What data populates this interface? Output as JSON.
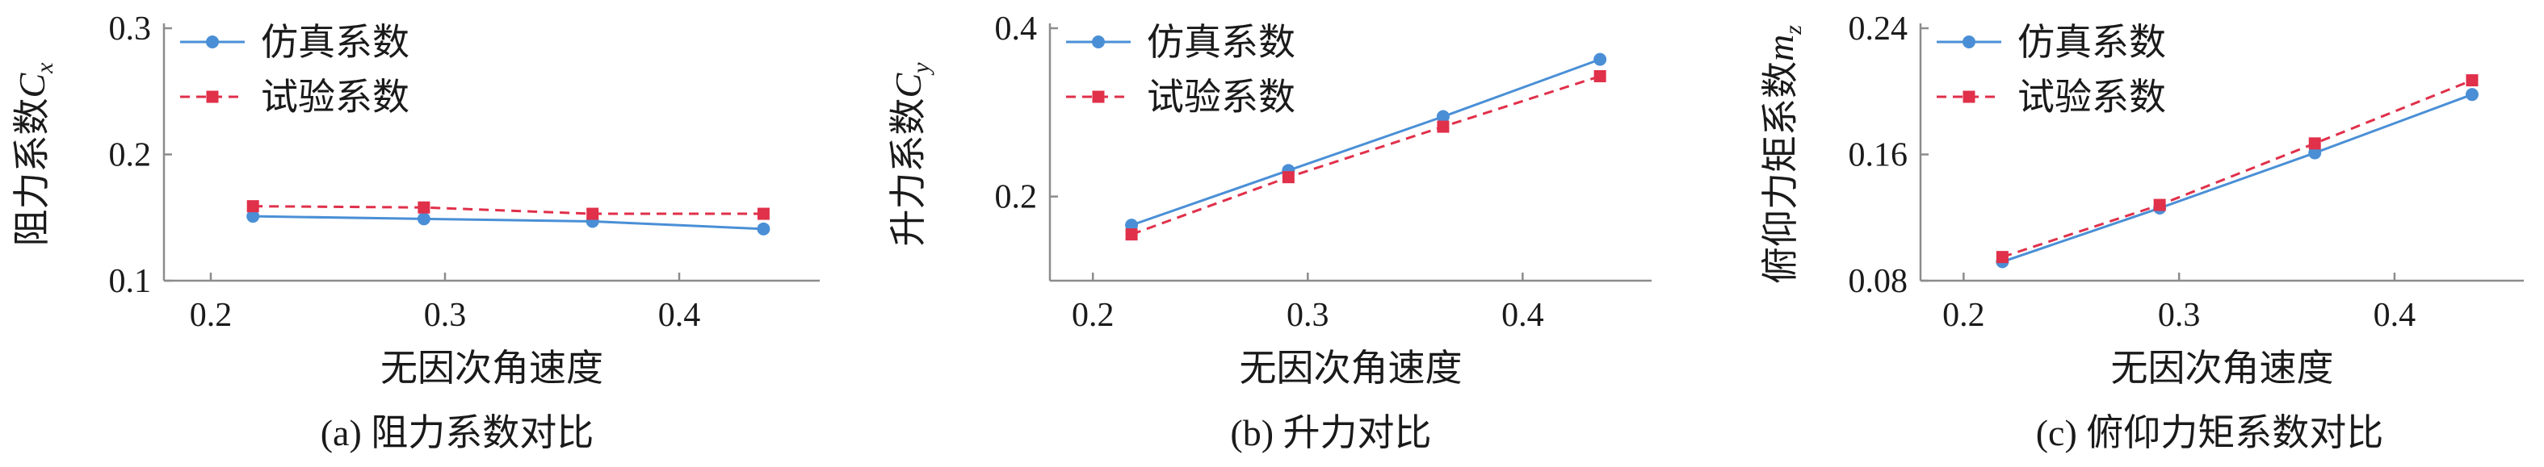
{
  "legend": {
    "sim_label": "仿真系数",
    "test_label": "试验系数"
  },
  "colors": {
    "sim": "#4a8fd6",
    "test": "#e0304a",
    "axis": "#8c8c8c"
  },
  "chart_data": [
    {
      "type": "line",
      "panel_caption": "(a) 阻力系数对比",
      "xlabel": "无因次角速度",
      "ylabel_text": "阻力系数",
      "ylabel_symbol": "C",
      "ylabel_sub": "x",
      "xlim": [
        0.18,
        0.46
      ],
      "ylim": [
        0.1,
        0.3
      ],
      "xticks": [
        0.2,
        0.3,
        0.4
      ],
      "xtick_labels": [
        "0.2",
        "0.3",
        "0.4"
      ],
      "yticks": [
        0.1,
        0.2,
        0.3
      ],
      "ytick_labels": [
        "0.1",
        "0.2",
        "0.3"
      ],
      "legend_position": "top-left",
      "grid": false,
      "x": [
        0.218,
        0.291,
        0.363,
        0.436
      ],
      "series": [
        {
          "name": "仿真系数",
          "values": [
            0.151,
            0.149,
            0.147,
            0.141
          ]
        },
        {
          "name": "试验系数",
          "values": [
            0.159,
            0.158,
            0.153,
            0.153
          ]
        }
      ]
    },
    {
      "type": "line",
      "panel_caption": "(b) 升力对比",
      "xlabel": "无因次角速度",
      "ylabel_text": "升力系数",
      "ylabel_symbol": "C",
      "ylabel_sub": "y",
      "xlim": [
        0.18,
        0.46
      ],
      "ylim": [
        0.1,
        0.4
      ],
      "xticks": [
        0.2,
        0.3,
        0.4
      ],
      "xtick_labels": [
        "0.2",
        "0.3",
        "0.4"
      ],
      "yticks": [
        0.2,
        0.4
      ],
      "ytick_labels": [
        "0.2",
        "0.4"
      ],
      "legend_position": "top-left",
      "grid": false,
      "x": [
        0.218,
        0.291,
        0.363,
        0.436
      ],
      "series": [
        {
          "name": "仿真系数",
          "values": [
            0.166,
            0.231,
            0.295,
            0.363
          ]
        },
        {
          "name": "试验系数",
          "values": [
            0.155,
            0.223,
            0.283,
            0.343
          ]
        }
      ]
    },
    {
      "type": "line",
      "panel_caption": "(c) 俯仰力矩系数对比",
      "xlabel": "无因次角速度",
      "ylabel_text": "俯仰力矩系数",
      "ylabel_symbol": "m",
      "ylabel_sub": "z",
      "xlim": [
        0.18,
        0.46
      ],
      "ylim": [
        0.08,
        0.24
      ],
      "xticks": [
        0.2,
        0.3,
        0.4
      ],
      "xtick_labels": [
        "0.2",
        "0.3",
        "0.4"
      ],
      "yticks": [
        0.08,
        0.16,
        0.24
      ],
      "ytick_labels": [
        "0.08",
        "0.16",
        "0.24"
      ],
      "legend_position": "top-left",
      "grid": false,
      "x": [
        0.218,
        0.291,
        0.363,
        0.436
      ],
      "series": [
        {
          "name": "仿真系数",
          "values": [
            0.092,
            0.126,
            0.161,
            0.198
          ]
        },
        {
          "name": "试验系数",
          "values": [
            0.095,
            0.128,
            0.167,
            0.207
          ]
        }
      ]
    }
  ]
}
